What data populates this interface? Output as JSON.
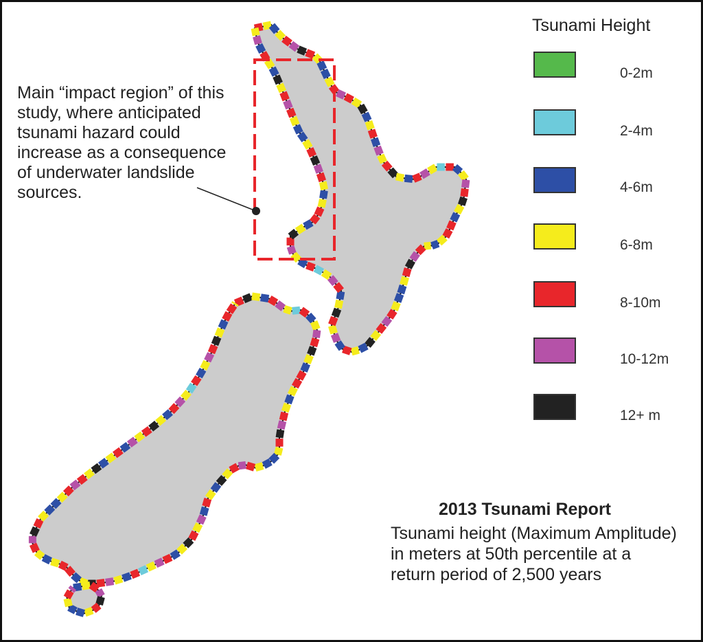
{
  "annotation": {
    "text": "Main “impact region” of this study, where anticipated tsunami hazard could increase as a consequence of underwater landslide sources."
  },
  "legend": {
    "title": "Tsunami Height",
    "items": [
      {
        "label": "0-2m",
        "color": "#55b94b"
      },
      {
        "label": "2-4m",
        "color": "#6dcbdb"
      },
      {
        "label": "4-6m",
        "color": "#2d4fa6"
      },
      {
        "label": "6-8m",
        "color": "#f5ec1c"
      },
      {
        "label": "8-10m",
        "color": "#e8262b"
      },
      {
        "label": "10-12m",
        "color": "#b552a8"
      },
      {
        "label": "12+ m",
        "color": "#222222"
      }
    ]
  },
  "report": {
    "title": "2013 Tsunami Report",
    "caption": "Tsunami height (Maximum Amplitude) in meters at 50th percentile at a return period of 2,500 years"
  },
  "map": {
    "land_color": "#cccccc",
    "impact_box_color": "#e8262b"
  }
}
